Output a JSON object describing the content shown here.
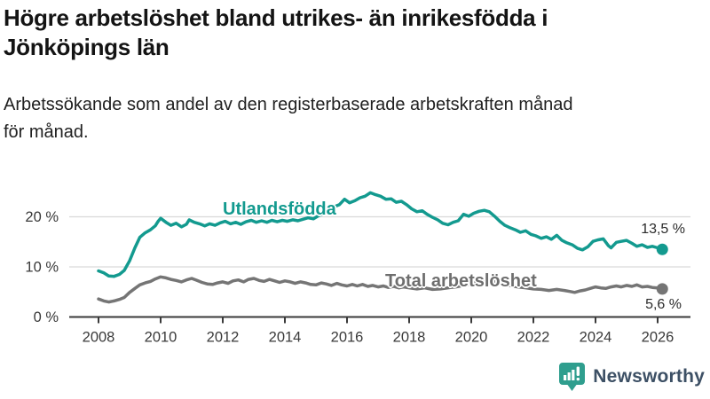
{
  "header": {
    "title_line1": "Högre arbetslöshet bland utrikes- än inrikesfödda i",
    "title_line2": "Jönköpings län",
    "subtitle_line1": "Arbetssökande som andel av den registerbaserade arbetskraften månad",
    "subtitle_line2": "för månad."
  },
  "chart_data": {
    "type": "line",
    "title": "Högre arbetslöshet bland utrikes- än inrikesfödda i Jönköpings län",
    "subtitle": "Arbetssökande som andel av den registerbaserade arbetskraften månad för månad.",
    "xlabel": "",
    "ylabel": "",
    "x_unit": "year (monthly data)",
    "y_unit": "%",
    "xlim": [
      2007.4,
      2027.0
    ],
    "ylim": [
      0,
      29
    ],
    "grid": "horizontal",
    "legend_position": "inline-labels",
    "axis_color": "#3a3a3a",
    "grid_color": "#d9d9d9",
    "yticks": [
      {
        "value": 0,
        "label": "0 %"
      },
      {
        "value": 10,
        "label": "10 %"
      },
      {
        "value": 20,
        "label": "20 %"
      }
    ],
    "xticks": [
      {
        "value": 2008,
        "label": "2008"
      },
      {
        "value": 2010,
        "label": "2010"
      },
      {
        "value": 2012,
        "label": "2012"
      },
      {
        "value": 2014,
        "label": "2014"
      },
      {
        "value": 2016,
        "label": "2016"
      },
      {
        "value": 2018,
        "label": "2018"
      },
      {
        "value": 2020,
        "label": "2020"
      },
      {
        "value": 2022,
        "label": "2022"
      },
      {
        "value": 2024,
        "label": "2024"
      },
      {
        "value": 2026,
        "label": "2026"
      }
    ],
    "series": [
      {
        "name": "Utlandsfödda",
        "color": "#139a8f",
        "end_label": "13,5 %",
        "end_value": 13.5,
        "points": [
          [
            2008.0,
            9.2
          ],
          [
            2008.17,
            8.8
          ],
          [
            2008.33,
            8.2
          ],
          [
            2008.5,
            8.1
          ],
          [
            2008.67,
            8.5
          ],
          [
            2008.83,
            9.3
          ],
          [
            2009.0,
            11.2
          ],
          [
            2009.17,
            13.8
          ],
          [
            2009.33,
            15.9
          ],
          [
            2009.5,
            16.8
          ],
          [
            2009.67,
            17.4
          ],
          [
            2009.83,
            18.2
          ],
          [
            2009.92,
            19.1
          ],
          [
            2010.0,
            19.7
          ],
          [
            2010.17,
            18.9
          ],
          [
            2010.33,
            18.3
          ],
          [
            2010.5,
            18.7
          ],
          [
            2010.67,
            18.0
          ],
          [
            2010.83,
            18.5
          ],
          [
            2010.92,
            19.4
          ],
          [
            2011.08,
            18.9
          ],
          [
            2011.25,
            18.6
          ],
          [
            2011.42,
            18.2
          ],
          [
            2011.58,
            18.6
          ],
          [
            2011.75,
            18.3
          ],
          [
            2011.92,
            18.8
          ],
          [
            2012.08,
            19.1
          ],
          [
            2012.25,
            18.6
          ],
          [
            2012.42,
            18.9
          ],
          [
            2012.58,
            18.5
          ],
          [
            2012.75,
            19.0
          ],
          [
            2012.92,
            19.3
          ],
          [
            2013.08,
            18.9
          ],
          [
            2013.25,
            19.2
          ],
          [
            2013.42,
            18.9
          ],
          [
            2013.58,
            19.3
          ],
          [
            2013.75,
            19.0
          ],
          [
            2013.92,
            19.3
          ],
          [
            2014.08,
            19.1
          ],
          [
            2014.25,
            19.4
          ],
          [
            2014.42,
            19.2
          ],
          [
            2014.58,
            19.5
          ],
          [
            2014.75,
            19.8
          ],
          [
            2014.92,
            19.6
          ],
          [
            2015.08,
            20.2
          ],
          [
            2015.25,
            20.7
          ],
          [
            2015.42,
            21.3
          ],
          [
            2015.58,
            22.0
          ],
          [
            2015.75,
            22.4
          ],
          [
            2015.92,
            23.5
          ],
          [
            2016.08,
            22.8
          ],
          [
            2016.25,
            23.2
          ],
          [
            2016.42,
            23.8
          ],
          [
            2016.58,
            24.1
          ],
          [
            2016.75,
            24.8
          ],
          [
            2016.92,
            24.4
          ],
          [
            2017.08,
            24.1
          ],
          [
            2017.25,
            23.5
          ],
          [
            2017.42,
            23.6
          ],
          [
            2017.58,
            22.9
          ],
          [
            2017.75,
            23.1
          ],
          [
            2017.92,
            22.4
          ],
          [
            2018.08,
            21.6
          ],
          [
            2018.25,
            21.0
          ],
          [
            2018.42,
            21.2
          ],
          [
            2018.58,
            20.5
          ],
          [
            2018.75,
            19.9
          ],
          [
            2018.92,
            19.4
          ],
          [
            2019.08,
            18.7
          ],
          [
            2019.25,
            18.4
          ],
          [
            2019.42,
            18.9
          ],
          [
            2019.58,
            19.2
          ],
          [
            2019.75,
            20.5
          ],
          [
            2019.92,
            20.1
          ],
          [
            2020.08,
            20.7
          ],
          [
            2020.25,
            21.1
          ],
          [
            2020.42,
            21.3
          ],
          [
            2020.58,
            21.0
          ],
          [
            2020.75,
            20.1
          ],
          [
            2020.92,
            19.1
          ],
          [
            2021.08,
            18.3
          ],
          [
            2021.25,
            17.8
          ],
          [
            2021.42,
            17.4
          ],
          [
            2021.58,
            16.9
          ],
          [
            2021.75,
            17.2
          ],
          [
            2021.92,
            16.5
          ],
          [
            2022.08,
            16.2
          ],
          [
            2022.25,
            15.7
          ],
          [
            2022.42,
            16.0
          ],
          [
            2022.58,
            15.5
          ],
          [
            2022.75,
            16.3
          ],
          [
            2022.92,
            15.3
          ],
          [
            2023.08,
            14.8
          ],
          [
            2023.25,
            14.4
          ],
          [
            2023.42,
            13.7
          ],
          [
            2023.58,
            13.4
          ],
          [
            2023.75,
            14.0
          ],
          [
            2023.92,
            15.1
          ],
          [
            2024.08,
            15.4
          ],
          [
            2024.25,
            15.6
          ],
          [
            2024.42,
            14.2
          ],
          [
            2024.5,
            13.8
          ],
          [
            2024.67,
            14.9
          ],
          [
            2024.83,
            15.1
          ],
          [
            2025.0,
            15.3
          ],
          [
            2025.17,
            14.7
          ],
          [
            2025.33,
            14.1
          ],
          [
            2025.5,
            14.4
          ],
          [
            2025.67,
            13.9
          ],
          [
            2025.83,
            14.1
          ],
          [
            2026.0,
            13.8
          ],
          [
            2026.15,
            13.5
          ]
        ]
      },
      {
        "name": "Total arbetslöshet",
        "color": "#757575",
        "end_label": "5,6 %",
        "end_value": 5.6,
        "points": [
          [
            2008.0,
            3.6
          ],
          [
            2008.17,
            3.2
          ],
          [
            2008.33,
            3.0
          ],
          [
            2008.5,
            3.2
          ],
          [
            2008.67,
            3.5
          ],
          [
            2008.83,
            3.9
          ],
          [
            2009.0,
            4.9
          ],
          [
            2009.17,
            5.7
          ],
          [
            2009.33,
            6.4
          ],
          [
            2009.5,
            6.8
          ],
          [
            2009.67,
            7.1
          ],
          [
            2009.83,
            7.6
          ],
          [
            2010.0,
            8.0
          ],
          [
            2010.17,
            7.8
          ],
          [
            2010.33,
            7.5
          ],
          [
            2010.5,
            7.3
          ],
          [
            2010.67,
            7.0
          ],
          [
            2010.83,
            7.4
          ],
          [
            2011.0,
            7.7
          ],
          [
            2011.17,
            7.3
          ],
          [
            2011.33,
            6.9
          ],
          [
            2011.5,
            6.6
          ],
          [
            2011.67,
            6.5
          ],
          [
            2011.83,
            6.8
          ],
          [
            2012.0,
            7.0
          ],
          [
            2012.17,
            6.7
          ],
          [
            2012.33,
            7.2
          ],
          [
            2012.5,
            7.4
          ],
          [
            2012.67,
            7.0
          ],
          [
            2012.83,
            7.5
          ],
          [
            2013.0,
            7.7
          ],
          [
            2013.17,
            7.3
          ],
          [
            2013.33,
            7.1
          ],
          [
            2013.5,
            7.5
          ],
          [
            2013.67,
            7.2
          ],
          [
            2013.83,
            6.9
          ],
          [
            2014.0,
            7.2
          ],
          [
            2014.17,
            7.0
          ],
          [
            2014.33,
            6.7
          ],
          [
            2014.5,
            7.0
          ],
          [
            2014.67,
            6.8
          ],
          [
            2014.83,
            6.5
          ],
          [
            2015.0,
            6.4
          ],
          [
            2015.17,
            6.8
          ],
          [
            2015.33,
            6.6
          ],
          [
            2015.5,
            6.3
          ],
          [
            2015.67,
            6.7
          ],
          [
            2015.83,
            6.4
          ],
          [
            2016.0,
            6.2
          ],
          [
            2016.17,
            6.5
          ],
          [
            2016.33,
            6.2
          ],
          [
            2016.5,
            6.5
          ],
          [
            2016.67,
            6.1
          ],
          [
            2016.83,
            6.3
          ],
          [
            2017.0,
            6.0
          ],
          [
            2017.17,
            6.2
          ],
          [
            2017.33,
            5.9
          ],
          [
            2017.5,
            6.1
          ],
          [
            2017.67,
            5.8
          ],
          [
            2017.83,
            6.0
          ],
          [
            2018.0,
            5.8
          ],
          [
            2018.25,
            5.6
          ],
          [
            2018.5,
            5.8
          ],
          [
            2018.75,
            5.5
          ],
          [
            2019.0,
            5.6
          ],
          [
            2019.25,
            5.8
          ],
          [
            2019.5,
            6.0
          ],
          [
            2019.75,
            6.3
          ],
          [
            2020.0,
            6.6
          ],
          [
            2020.25,
            7.3
          ],
          [
            2020.5,
            7.4
          ],
          [
            2020.75,
            7.1
          ],
          [
            2021.0,
            6.7
          ],
          [
            2021.25,
            6.3
          ],
          [
            2021.5,
            6.0
          ],
          [
            2021.75,
            5.8
          ],
          [
            2022.0,
            5.6
          ],
          [
            2022.25,
            5.5
          ],
          [
            2022.5,
            5.3
          ],
          [
            2022.75,
            5.5
          ],
          [
            2023.0,
            5.3
          ],
          [
            2023.17,
            5.1
          ],
          [
            2023.33,
            4.9
          ],
          [
            2023.5,
            5.2
          ],
          [
            2023.67,
            5.4
          ],
          [
            2023.83,
            5.7
          ],
          [
            2024.0,
            6.0
          ],
          [
            2024.17,
            5.8
          ],
          [
            2024.33,
            5.7
          ],
          [
            2024.5,
            6.0
          ],
          [
            2024.67,
            6.2
          ],
          [
            2024.83,
            6.0
          ],
          [
            2025.0,
            6.3
          ],
          [
            2025.17,
            6.1
          ],
          [
            2025.33,
            6.4
          ],
          [
            2025.5,
            6.0
          ],
          [
            2025.67,
            6.1
          ],
          [
            2025.83,
            5.9
          ],
          [
            2026.0,
            5.8
          ],
          [
            2026.15,
            5.6
          ]
        ]
      }
    ]
  },
  "branding": {
    "logo_text": "Newsworthy",
    "icon": "newsworthy-chart-bubble-icon",
    "icon_color": "#2f9e8e",
    "text_color": "#3d5065"
  }
}
